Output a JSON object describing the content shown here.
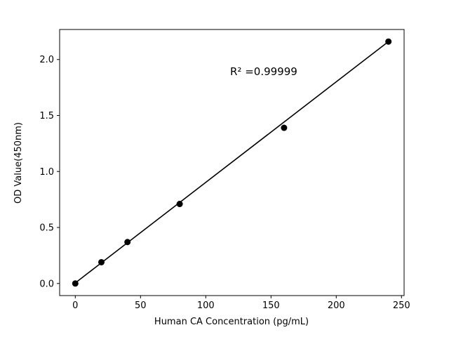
{
  "chart_data": {
    "type": "scatter",
    "title": "",
    "xlabel": "Human CA Concentration (pg/mL)",
    "ylabel": "OD Value(450nm)",
    "annotation": "R² =0.99999",
    "x": [
      0,
      20,
      40,
      80,
      160,
      240
    ],
    "y": [
      0.0,
      0.19,
      0.37,
      0.71,
      1.39,
      2.16
    ],
    "fit_line": {
      "x": [
        0,
        240
      ],
      "y": [
        0.005,
        2.16
      ]
    },
    "xlim": [
      -12,
      252
    ],
    "ylim": [
      -0.108,
      2.268
    ],
    "xticks": [
      0,
      50,
      100,
      150,
      200,
      250
    ],
    "xtick_labels": [
      "0",
      "50",
      "100",
      "150",
      "200",
      "250"
    ],
    "yticks": [
      0.0,
      0.5,
      1.0,
      1.5,
      2.0
    ],
    "ytick_labels": [
      "0.0",
      "0.5",
      "1.0",
      "1.5",
      "2.0"
    ],
    "grid": false,
    "legend": null,
    "marker_color": "#000000",
    "line_color": "#000000",
    "axis_color": "#000000",
    "background_color": "#ffffff"
  }
}
